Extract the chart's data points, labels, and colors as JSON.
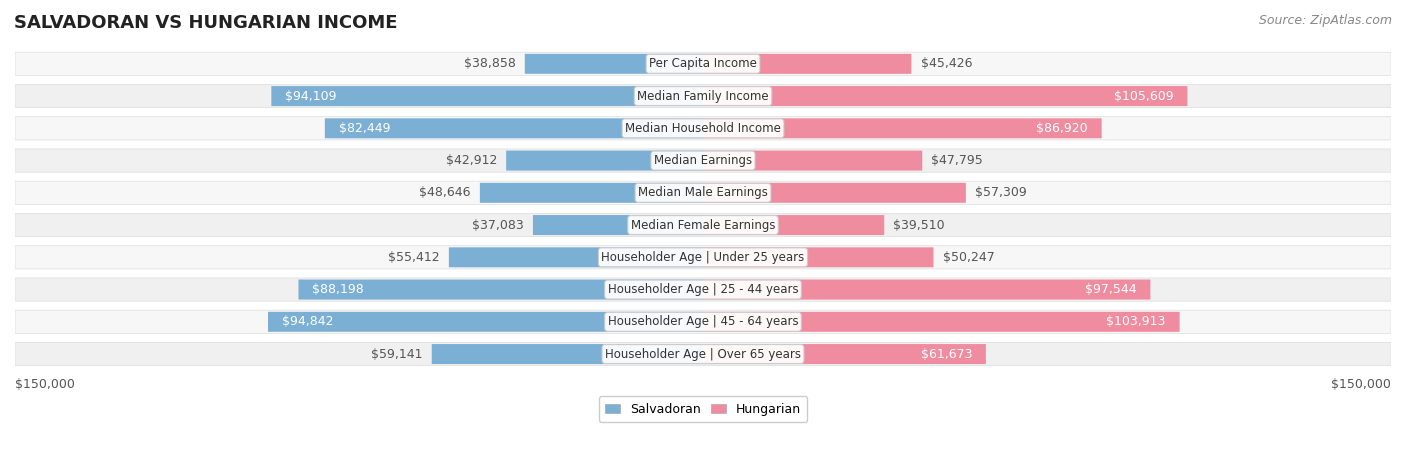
{
  "title": "SALVADORAN VS HUNGARIAN INCOME",
  "source": "Source: ZipAtlas.com",
  "max_value": 150000,
  "categories": [
    "Per Capita Income",
    "Median Family Income",
    "Median Household Income",
    "Median Earnings",
    "Median Male Earnings",
    "Median Female Earnings",
    "Householder Age | Under 25 years",
    "Householder Age | 25 - 44 years",
    "Householder Age | 45 - 64 years",
    "Householder Age | Over 65 years"
  ],
  "salvadoran": [
    38858,
    94109,
    82449,
    42912,
    48646,
    37083,
    55412,
    88198,
    94842,
    59141
  ],
  "hungarian": [
    45426,
    105609,
    86920,
    47795,
    57309,
    39510,
    50247,
    97544,
    103913,
    61673
  ],
  "color_salvadoran": "#7bafd4",
  "color_hungarian": "#f08ca0",
  "color_salvadoran_dark": "#4a86c8",
  "color_hungarian_dark": "#e8607a",
  "bg_row_light": "#f5f5f5",
  "bg_row_alt": "#eeeeee",
  "label_bg": "#ffffff",
  "title_fontsize": 13,
  "source_fontsize": 9,
  "bar_label_fontsize": 9,
  "category_fontsize": 8.5
}
